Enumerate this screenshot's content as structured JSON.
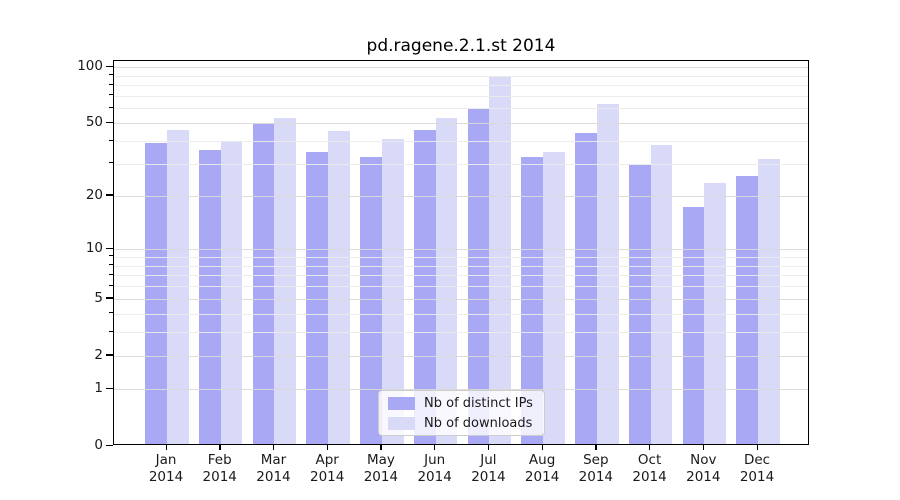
{
  "title": "pd.ragene.2.1.st 2014",
  "legend": {
    "items": [
      {
        "label": "Nb of distinct IPs",
        "color": "#a8a8f4"
      },
      {
        "label": "Nb of downloads",
        "color": "#d9d9f8"
      }
    ]
  },
  "y_axis": {
    "tick_labels": [
      "100",
      "50",
      "20",
      "10",
      "5",
      "2",
      "1",
      "0"
    ],
    "ticks": [
      100,
      50,
      20,
      10,
      5,
      2,
      1,
      0
    ],
    "minor_ticks": [
      3,
      4,
      6,
      7,
      8,
      9,
      30,
      40,
      60,
      70,
      80,
      90
    ],
    "scale": "log1p",
    "max": 107
  },
  "x_axis": {
    "months": [
      "Jan",
      "Feb",
      "Mar",
      "Apr",
      "May",
      "Jun",
      "Jul",
      "Aug",
      "Sep",
      "Oct",
      "Nov",
      "Dec"
    ],
    "year": "2014"
  },
  "colors": {
    "bar_dark": "#a8a8f4",
    "bar_light": "#d9d9f8",
    "grid_major": "#dadada",
    "grid_minor": "#ececec",
    "spine": "#000000",
    "text": "#1a1a1a"
  },
  "chart_data": {
    "type": "bar",
    "title": "pd.ragene.2.1.st 2014",
    "categories": [
      "Jan 2014",
      "Feb 2014",
      "Mar 2014",
      "Apr 2014",
      "May 2014",
      "Jun 2014",
      "Jul 2014",
      "Aug 2014",
      "Sep 2014",
      "Oct 2014",
      "Nov 2014",
      "Dec 2014"
    ],
    "series": [
      {
        "name": "Nb of distinct IPs",
        "color": "#a8a8f4",
        "values": [
          38,
          35,
          48,
          34,
          32,
          45,
          58,
          32,
          43,
          29,
          17,
          25
        ]
      },
      {
        "name": "Nb of downloads",
        "color": "#d9d9f8",
        "values": [
          45,
          39,
          52,
          44,
          40,
          52,
          87,
          34,
          62,
          37,
          23,
          31
        ]
      }
    ],
    "xlabel": "",
    "ylabel": "",
    "yscale": "log1p",
    "ylim": [
      0,
      107
    ],
    "yticks": [
      0,
      1,
      2,
      5,
      10,
      20,
      50,
      100
    ],
    "grid": "both",
    "legend_position": "lower-center-left"
  }
}
